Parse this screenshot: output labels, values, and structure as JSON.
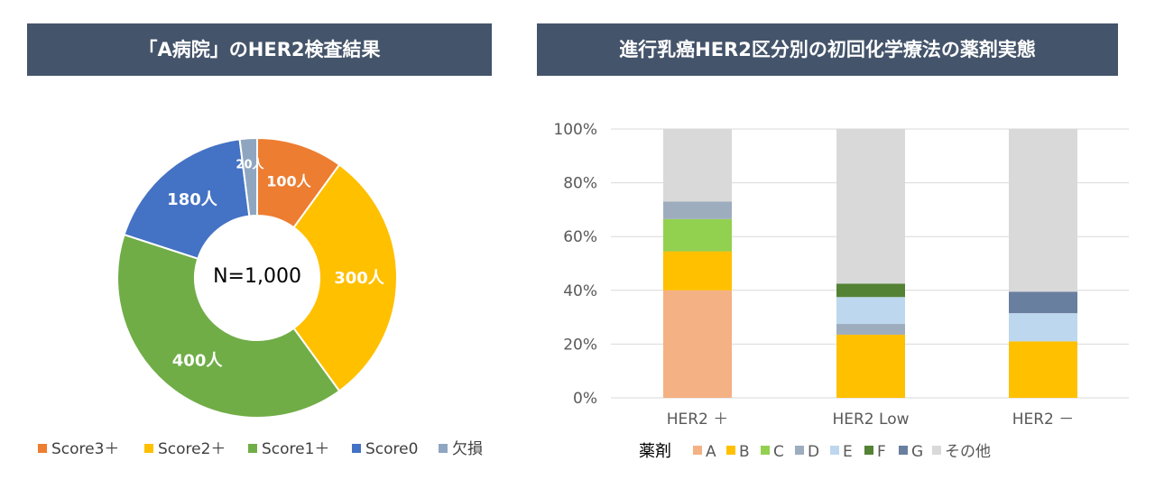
{
  "chart_data": [
    {
      "type": "pie",
      "title": "「A病院」のHER2検査結果",
      "center_label": "N=1,000",
      "donut": true,
      "slices": [
        {
          "name": "Score3＋",
          "value": 100,
          "label": "100人",
          "color": "#ed7d31"
        },
        {
          "name": "Score2＋",
          "value": 300,
          "label": "300人",
          "color": "#ffc000"
        },
        {
          "name": "Score1＋",
          "value": 400,
          "label": "400人",
          "color": "#70ad47"
        },
        {
          "name": "Score0",
          "value": 180,
          "label": "180人",
          "color": "#4472c4"
        },
        {
          "name": "欠損",
          "value": 20,
          "label": "20人",
          "color": "#8fa6c0"
        }
      ],
      "legend_position": "bottom"
    },
    {
      "type": "bar",
      "stacked": true,
      "title": "進行乳癌HER2区分別の初回化学療法の薬剤実態",
      "categories": [
        "HER2 ＋",
        "HER2 Low",
        "HER2 －"
      ],
      "yticks": [
        "0%",
        "20%",
        "40%",
        "60%",
        "80%",
        "100%"
      ],
      "ylim": [
        0,
        100
      ],
      "grid": true,
      "legend_title": "薬剤",
      "legend_position": "bottom",
      "series": [
        {
          "name": "A",
          "color": "#f4b183",
          "values": [
            40,
            0,
            0
          ]
        },
        {
          "name": "B",
          "color": "#ffc000",
          "values": [
            14.5,
            23.5,
            21
          ]
        },
        {
          "name": "C",
          "color": "#92d050",
          "values": [
            12,
            0,
            0
          ]
        },
        {
          "name": "D",
          "color": "#9dadbe",
          "values": [
            6.5,
            4,
            0
          ]
        },
        {
          "name": "E",
          "color": "#bdd7ee",
          "values": [
            0,
            10,
            10.5
          ]
        },
        {
          "name": "F",
          "color": "#548235",
          "values": [
            0,
            5,
            0
          ]
        },
        {
          "name": "G",
          "color": "#697f9f",
          "values": [
            0,
            0,
            8
          ]
        },
        {
          "name": "その他",
          "color": "#d9d9d9",
          "values": [
            27,
            57.5,
            60.5
          ]
        }
      ]
    }
  ]
}
